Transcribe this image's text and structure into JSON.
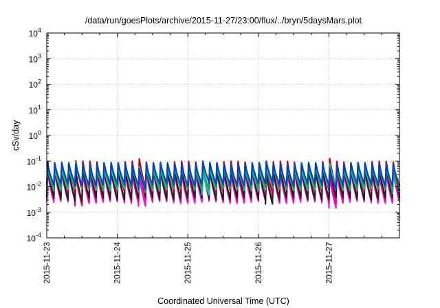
{
  "chart_data": {
    "type": "line",
    "title": "/data/run/goesPlots/archive/2015-11-27/23:00/flux/../bryn/5daysMars.plot",
    "xlabel": "Coordinated Universal Time (UTC)",
    "ylabel": "cSv/day",
    "y_scale": "log",
    "ylim": [
      0.0001,
      10000
    ],
    "xlim": [
      "2015-11-23",
      "2015-11-28"
    ],
    "x_tick_labels": [
      "2015-11-23",
      "2015-11-24",
      "2015-11-25",
      "2015-11-26",
      "2015-11-27"
    ],
    "y_tick_labels": [
      {
        "base": "10",
        "exp": "4"
      },
      {
        "base": "10",
        "exp": "3"
      },
      {
        "base": "10",
        "exp": "2"
      },
      {
        "base": "10",
        "exp": "1"
      },
      {
        "base": "10",
        "exp": "0"
      },
      {
        "base": "10",
        "exp": "-1"
      },
      {
        "base": "10",
        "exp": "-2"
      },
      {
        "base": "10",
        "exp": "-3"
      },
      {
        "base": "10",
        "exp": "-4"
      }
    ],
    "grid": true,
    "pattern": {
      "period_hours": 2.4,
      "description": "sawtooth: sharp rise to peak then decay to trough, repeating",
      "start_day": "2015-11-23"
    },
    "series": [
      {
        "color": "#ff00ff",
        "peak": 0.04,
        "trough": 0.0025
      },
      {
        "color": "#ee0077",
        "peak": 0.05,
        "trough": 0.003
      },
      {
        "color": "#222222",
        "peak": 0.055,
        "trough": 0.0035
      },
      {
        "color": "#cc0000",
        "peak": 0.09,
        "trough": 0.007
      },
      {
        "color": "#00cccc",
        "peak": 0.06,
        "trough": 0.008
      },
      {
        "color": "#22aa44",
        "peak": 0.07,
        "trough": 0.009
      },
      {
        "color": "#0044cc",
        "peak": 0.08,
        "trough": 0.012
      }
    ]
  }
}
